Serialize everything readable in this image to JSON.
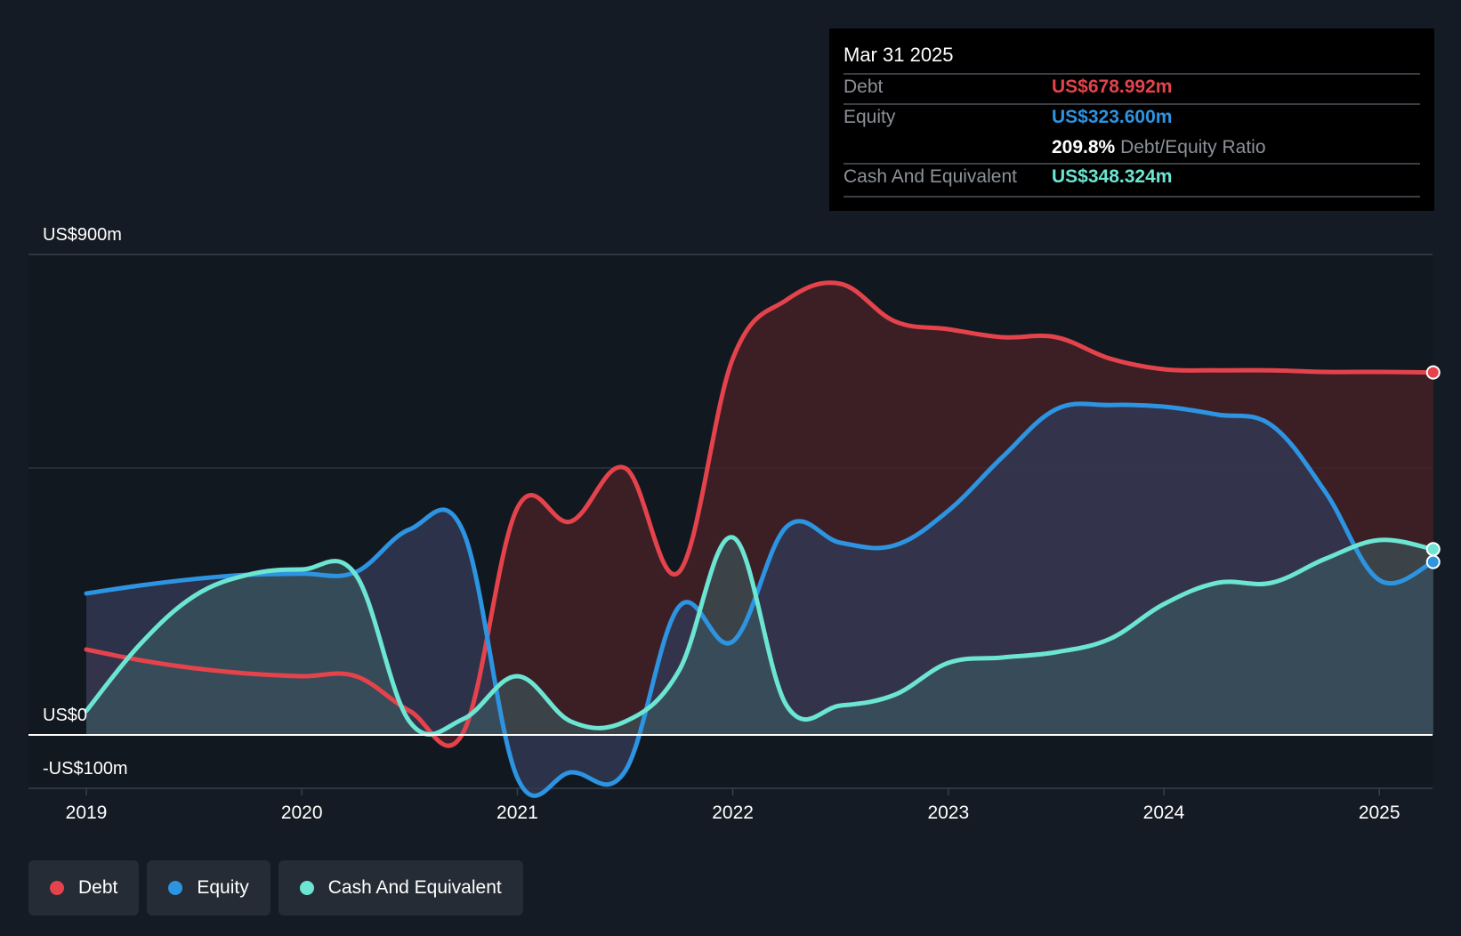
{
  "tooltip": {
    "date": "Mar 31 2025",
    "debt_label": "Debt",
    "debt_value": "US$678.992m",
    "equity_label": "Equity",
    "equity_value": "US$323.600m",
    "ratio_value": "209.8%",
    "ratio_label": "Debt/Equity Ratio",
    "cash_label": "Cash And Equivalent",
    "cash_value": "US$348.324m"
  },
  "legend": [
    {
      "label": "Debt",
      "color": "#e5434c"
    },
    {
      "label": "Equity",
      "color": "#2d94e2"
    },
    {
      "label": "Cash And Equivalent",
      "color": "#6ce5d2"
    }
  ],
  "chart_data": {
    "type": "area",
    "y_tick_labels": [
      "US$900m",
      "US$0",
      "-US$100m"
    ],
    "y_tick_values": [
      900,
      0,
      -100
    ],
    "ylim": [
      -100,
      900
    ],
    "xlim": [
      2019.0,
      2025.25
    ],
    "x_ticks": [
      2019,
      2020,
      2021,
      2022,
      2023,
      2024,
      2025
    ],
    "x_tick_labels": [
      "2019",
      "2020",
      "2021",
      "2022",
      "2023",
      "2024",
      "2025"
    ],
    "series": [
      {
        "name": "Debt",
        "color": "#e5434c",
        "fill": "#4a2127",
        "points": [
          [
            2019.0,
            160
          ],
          [
            2019.25,
            140
          ],
          [
            2019.5,
            125
          ],
          [
            2019.75,
            115
          ],
          [
            2020.0,
            110
          ],
          [
            2020.25,
            110
          ],
          [
            2020.5,
            45
          ],
          [
            2020.75,
            5
          ],
          [
            2021.0,
            425
          ],
          [
            2021.25,
            400
          ],
          [
            2021.5,
            500
          ],
          [
            2021.75,
            305
          ],
          [
            2022.0,
            705
          ],
          [
            2022.25,
            815
          ],
          [
            2022.5,
            845
          ],
          [
            2022.75,
            775
          ],
          [
            2023.0,
            760
          ],
          [
            2023.25,
            745
          ],
          [
            2023.5,
            745
          ],
          [
            2023.75,
            705
          ],
          [
            2024.0,
            685
          ],
          [
            2024.25,
            683
          ],
          [
            2024.5,
            683
          ],
          [
            2024.75,
            680
          ],
          [
            2025.0,
            680
          ],
          [
            2025.25,
            679
          ]
        ]
      },
      {
        "name": "Equity",
        "color": "#2d94e2",
        "fill": "#323a55",
        "points": [
          [
            2019.0,
            265
          ],
          [
            2019.25,
            280
          ],
          [
            2019.5,
            292
          ],
          [
            2019.75,
            300
          ],
          [
            2020.0,
            302
          ],
          [
            2020.25,
            305
          ],
          [
            2020.5,
            385
          ],
          [
            2020.75,
            380
          ],
          [
            2021.0,
            -80
          ],
          [
            2021.25,
            -70
          ],
          [
            2021.5,
            -68
          ],
          [
            2021.75,
            240
          ],
          [
            2022.0,
            175
          ],
          [
            2022.25,
            390
          ],
          [
            2022.5,
            360
          ],
          [
            2022.75,
            355
          ],
          [
            2023.0,
            420
          ],
          [
            2023.25,
            520
          ],
          [
            2023.5,
            610
          ],
          [
            2023.75,
            618
          ],
          [
            2024.0,
            615
          ],
          [
            2024.25,
            600
          ],
          [
            2024.5,
            580
          ],
          [
            2024.75,
            455
          ],
          [
            2025.0,
            290
          ],
          [
            2025.25,
            324
          ]
        ]
      },
      {
        "name": "Cash And Equivalent",
        "color": "#6ce5d2",
        "fill": "#3c5c60",
        "points": [
          [
            2019.0,
            45
          ],
          [
            2019.25,
            170
          ],
          [
            2019.5,
            260
          ],
          [
            2019.75,
            300
          ],
          [
            2020.0,
            310
          ],
          [
            2020.25,
            300
          ],
          [
            2020.5,
            25
          ],
          [
            2020.75,
            30
          ],
          [
            2021.0,
            110
          ],
          [
            2021.25,
            25
          ],
          [
            2021.5,
            25
          ],
          [
            2021.75,
            120
          ],
          [
            2022.0,
            370
          ],
          [
            2022.25,
            55
          ],
          [
            2022.5,
            55
          ],
          [
            2022.75,
            75
          ],
          [
            2023.0,
            135
          ],
          [
            2023.25,
            145
          ],
          [
            2023.5,
            155
          ],
          [
            2023.75,
            180
          ],
          [
            2024.0,
            245
          ],
          [
            2024.25,
            285
          ],
          [
            2024.5,
            285
          ],
          [
            2024.75,
            330
          ],
          [
            2025.0,
            365
          ],
          [
            2025.25,
            348
          ]
        ]
      }
    ]
  }
}
